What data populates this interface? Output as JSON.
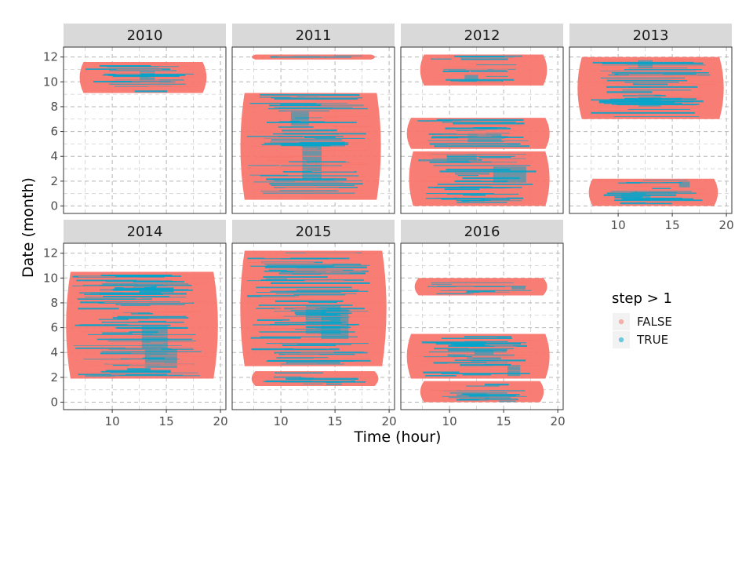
{
  "chart_data": {
    "type": "scatter",
    "xlabel": "Time (hour)",
    "ylabel": "Date (month)",
    "xlim": [
      5.5,
      20.5
    ],
    "ylim": [
      -0.6,
      12.8
    ],
    "x_ticks": [
      10,
      15,
      20
    ],
    "y_ticks": [
      0,
      2,
      4,
      6,
      8,
      10,
      12
    ],
    "grid": true,
    "legend": {
      "title": "step > 1",
      "position": "right",
      "entries": [
        {
          "label": "FALSE",
          "color": "#F8766D"
        },
        {
          "label": "TRUE",
          "color": "#00A5CC"
        }
      ]
    },
    "series": [
      {
        "name": "FALSE",
        "color": "#F8766D"
      },
      {
        "name": "TRUE",
        "color": "#00A5CC"
      }
    ],
    "panels": [
      {
        "label": "2010",
        "bands": [
          {
            "y0": 9.1,
            "y1": 11.6,
            "x0": 7.2,
            "x1": 18.5,
            "true_fraction": 0.3
          }
        ]
      },
      {
        "label": "2011",
        "bands": [
          {
            "y0": 11.8,
            "y1": 12.2,
            "x0": 7.5,
            "x1": 18.5,
            "true_fraction": 0.3
          },
          {
            "y0": 0.5,
            "y1": 9.1,
            "x0": 6.5,
            "x1": 19.0,
            "true_fraction": 0.4
          }
        ]
      },
      {
        "label": "2012",
        "bands": [
          {
            "y0": 9.7,
            "y1": 12.2,
            "x0": 7.5,
            "x1": 18.8,
            "true_fraction": 0.3
          },
          {
            "y0": 4.6,
            "y1": 7.1,
            "x0": 6.3,
            "x1": 19.0,
            "true_fraction": 0.35
          },
          {
            "y0": 0.0,
            "y1": 4.4,
            "x0": 6.5,
            "x1": 19.0,
            "true_fraction": 0.4
          }
        ]
      },
      {
        "label": "2013",
        "bands": [
          {
            "y0": 7.0,
            "y1": 12.0,
            "x0": 6.5,
            "x1": 19.5,
            "true_fraction": 0.4
          },
          {
            "y0": 0.0,
            "y1": 2.2,
            "x0": 7.5,
            "x1": 19.0,
            "true_fraction": 0.45
          }
        ]
      },
      {
        "label": "2014",
        "bands": [
          {
            "y0": 1.9,
            "y1": 10.5,
            "x0": 6.0,
            "x1": 19.5,
            "true_fraction": 0.6
          }
        ]
      },
      {
        "label": "2015",
        "bands": [
          {
            "y0": 2.9,
            "y1": 12.2,
            "x0": 6.5,
            "x1": 19.5,
            "true_fraction": 0.45
          },
          {
            "y0": 1.3,
            "y1": 2.5,
            "x0": 7.5,
            "x1": 18.8,
            "true_fraction": 0.45
          }
        ]
      },
      {
        "label": "2016",
        "bands": [
          {
            "y0": 8.6,
            "y1": 10.0,
            "x0": 7.0,
            "x1": 18.8,
            "true_fraction": 0.3
          },
          {
            "y0": 1.9,
            "y1": 5.5,
            "x0": 6.3,
            "x1": 19.0,
            "true_fraction": 0.55
          },
          {
            "y0": 0.0,
            "y1": 1.7,
            "x0": 7.5,
            "x1": 18.5,
            "true_fraction": 0.55
          }
        ]
      }
    ]
  }
}
